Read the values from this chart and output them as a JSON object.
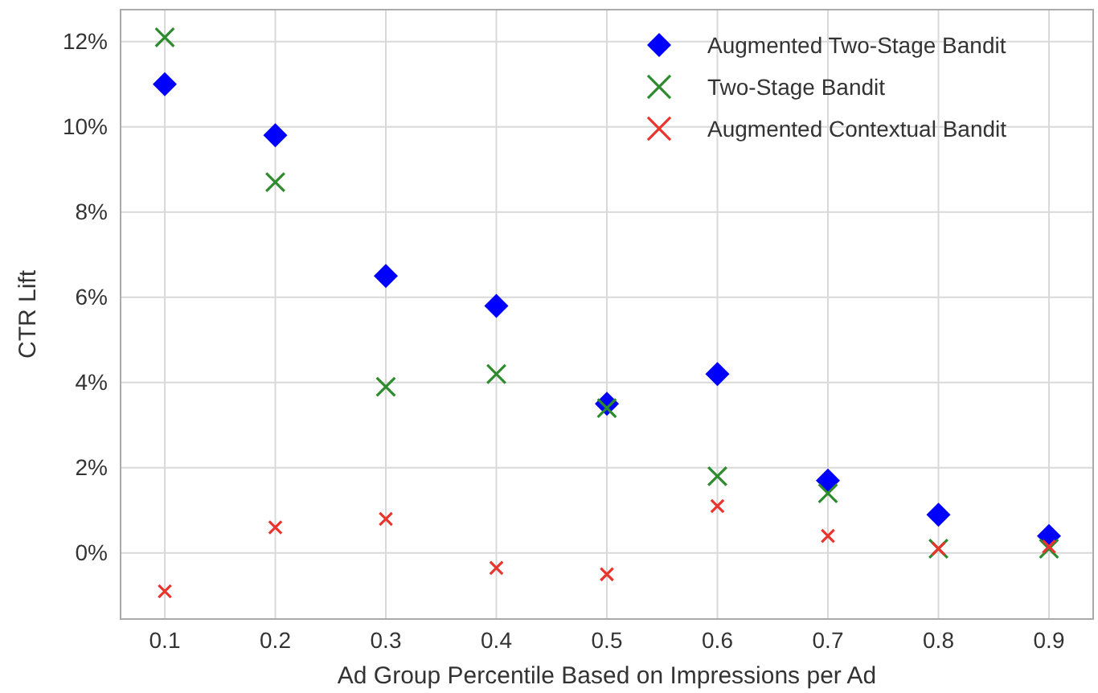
{
  "chart_data": {
    "type": "scatter",
    "xlabel": "Ad Group Percentile Based on Impressions per Ad",
    "ylabel": "CTR Lift",
    "x": [
      0.1,
      0.2,
      0.3,
      0.4,
      0.5,
      0.6,
      0.7,
      0.8,
      0.9
    ],
    "series": [
      {
        "name": "Augmented Two-Stage Bandit",
        "color": "#0000ff",
        "marker": "diamond",
        "values": [
          11.0,
          9.8,
          6.5,
          5.8,
          3.5,
          4.2,
          1.7,
          0.9,
          0.4
        ]
      },
      {
        "name": "Two-Stage Bandit",
        "color": "#2e8b2e",
        "marker": "cross",
        "values": [
          12.1,
          8.7,
          3.9,
          4.2,
          3.4,
          1.8,
          1.4,
          0.1,
          0.1
        ]
      },
      {
        "name": "Augmented Contextual Bandit",
        "color": "#e8352e",
        "marker": "cross",
        "values": [
          -0.9,
          0.6,
          0.8,
          -0.35,
          -0.5,
          1.1,
          0.4,
          0.1,
          0.15
        ]
      }
    ],
    "xlim": [
      0.06,
      0.94
    ],
    "xticks": [
      0.1,
      0.2,
      0.3,
      0.4,
      0.5,
      0.6,
      0.7,
      0.8,
      0.9
    ],
    "ylim": [
      -1.55,
      12.75
    ],
    "yticks": [
      {
        "value": 0,
        "label": "0%"
      },
      {
        "value": 2,
        "label": "2%"
      },
      {
        "value": 4,
        "label": "4%"
      },
      {
        "value": 6,
        "label": "6%"
      },
      {
        "value": 8,
        "label": "8%"
      },
      {
        "value": 10,
        "label": "10%"
      },
      {
        "value": 12,
        "label": "12%"
      }
    ],
    "grid": true,
    "legend": "top right"
  }
}
